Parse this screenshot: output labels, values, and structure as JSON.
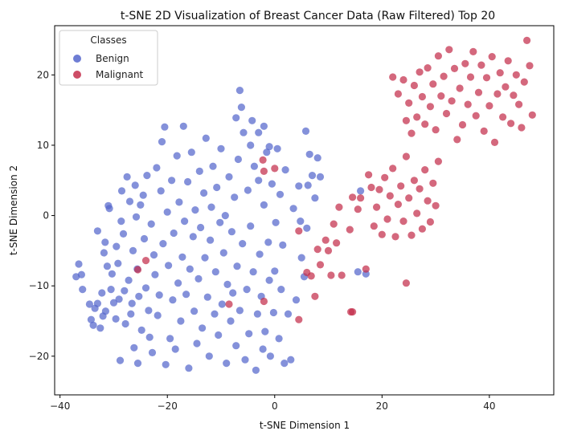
{
  "chart_data": {
    "type": "scatter",
    "title": "t-SNE 2D Visualization of Breast Cancer Data (Raw Filtered) Top 20",
    "xlabel": "t-SNE Dimension 1",
    "ylabel": "t-SNE Dimension 2",
    "xlim": [
      -41,
      52
    ],
    "ylim": [
      -25.5,
      27
    ],
    "xticks": [
      -40,
      -20,
      0,
      20,
      40
    ],
    "yticks": [
      -20,
      -10,
      0,
      10,
      20
    ],
    "grid": false,
    "legend": {
      "title": "Classes",
      "placement": "top-left"
    },
    "series": [
      {
        "name": "Benign",
        "color": "#5566cc",
        "points": [
          [
            -37,
            -8.7
          ],
          [
            -36.5,
            -6.9
          ],
          [
            -36,
            -8.4
          ],
          [
            -35.8,
            -10.5
          ],
          [
            -34.5,
            -12.6
          ],
          [
            -34.2,
            -14.8
          ],
          [
            -33.8,
            -15.6
          ],
          [
            -33.5,
            -13.2
          ],
          [
            -33,
            -2.2
          ],
          [
            -33,
            -12.5
          ],
          [
            -32.5,
            -16.0
          ],
          [
            -32.2,
            -11.0
          ],
          [
            -32.0,
            -14.3
          ],
          [
            -31.8,
            -5.3
          ],
          [
            -31.6,
            -3.8
          ],
          [
            -31.5,
            -13.6
          ],
          [
            -31.2,
            -7.2
          ],
          [
            -31,
            1.4
          ],
          [
            -30.8,
            1.0
          ],
          [
            -30.5,
            -10.5
          ],
          [
            -30.3,
            -8.3
          ],
          [
            -30.0,
            -12.4
          ],
          [
            -29.6,
            -14.7
          ],
          [
            -29.5,
            -4.4
          ],
          [
            -29.2,
            -6.8
          ],
          [
            -29,
            -11.9
          ],
          [
            -28.8,
            -20.6
          ],
          [
            -28.6,
            -0.8
          ],
          [
            -28.5,
            3.5
          ],
          [
            -28.2,
            -2.6
          ],
          [
            -28,
            -10.7
          ],
          [
            -27.8,
            -15.4
          ],
          [
            -27.5,
            5.5
          ],
          [
            -27.2,
            -9.2
          ],
          [
            -27.0,
            2.0
          ],
          [
            -26.8,
            -14.0
          ],
          [
            -26.6,
            -12.5
          ],
          [
            -26.4,
            -5.0
          ],
          [
            -26.2,
            -18.8
          ],
          [
            -26.0,
            4.3
          ],
          [
            -25.8,
            -0.2
          ],
          [
            -25.6,
            -7.6
          ],
          [
            -25.5,
            -21.0
          ],
          [
            -25.3,
            -11.5
          ],
          [
            -25.0,
            1.5
          ],
          [
            -24.8,
            -16.3
          ],
          [
            -24.5,
            2.9
          ],
          [
            -24.3,
            -3.3
          ],
          [
            -24.0,
            -10.3
          ],
          [
            -23.8,
            5.7
          ],
          [
            -23.5,
            -13.5
          ],
          [
            -23.3,
            -17.3
          ],
          [
            -23.0,
            -1.2
          ],
          [
            -22.8,
            -19.5
          ],
          [
            -22.5,
            -5.6
          ],
          [
            -22.3,
            -8.4
          ],
          [
            -22.0,
            6.8
          ],
          [
            -21.8,
            -14.2
          ],
          [
            -21.5,
            -11.3
          ],
          [
            -21.2,
            3.5
          ],
          [
            -21.0,
            10.5
          ],
          [
            -20.8,
            -4.0
          ],
          [
            -20.5,
            12.6
          ],
          [
            -20.3,
            -21.2
          ],
          [
            -20.0,
            0.5
          ],
          [
            -19.8,
            -7.1
          ],
          [
            -19.5,
            -17.5
          ],
          [
            -19.2,
            5.0
          ],
          [
            -19.0,
            -12.0
          ],
          [
            -18.8,
            -2.5
          ],
          [
            -18.5,
            -19.0
          ],
          [
            -18.2,
            8.5
          ],
          [
            -18.0,
            -9.6
          ],
          [
            -17.8,
            1.9
          ],
          [
            -17.5,
            -15.0
          ],
          [
            -17.2,
            -5.9
          ],
          [
            -17.0,
            12.7
          ],
          [
            -16.8,
            -0.8
          ],
          [
            -16.5,
            -11.2
          ],
          [
            -16.2,
            4.8
          ],
          [
            -16.0,
            -21.7
          ],
          [
            -15.8,
            -7.6
          ],
          [
            -15.5,
            9.0
          ],
          [
            -15.2,
            -3.0
          ],
          [
            -15.0,
            -13.6
          ],
          [
            -14.8,
            0.8
          ],
          [
            -14.5,
            -18.2
          ],
          [
            -14.2,
            -9.0
          ],
          [
            -14.0,
            6.3
          ],
          [
            -13.8,
            -1.7
          ],
          [
            -13.5,
            -16.0
          ],
          [
            -13.2,
            3.2
          ],
          [
            -13.0,
            -6.0
          ],
          [
            -12.8,
            11.0
          ],
          [
            -12.5,
            -11.6
          ],
          [
            -12.2,
            -20.0
          ],
          [
            -12.0,
            -3.5
          ],
          [
            -11.8,
            1.2
          ],
          [
            -11.5,
            7.0
          ],
          [
            -11.2,
            -14.0
          ],
          [
            -11.0,
            -8.0
          ],
          [
            -10.8,
            4.0
          ],
          [
            -10.5,
            -17.0
          ],
          [
            -10.2,
            -1.0
          ],
          [
            -10.0,
            9.5
          ],
          [
            -9.8,
            -12.6
          ],
          [
            -9.5,
            -5.3
          ],
          [
            -9.2,
            0.0
          ],
          [
            -9.0,
            -21.0
          ],
          [
            -8.8,
            -9.8
          ],
          [
            -8.5,
            5.5
          ],
          [
            -8.2,
            -15.0
          ],
          [
            -8.0,
            -2.3
          ],
          [
            -7.8,
            -11.0
          ],
          [
            -7.5,
            2.6
          ],
          [
            -7.2,
            -18.5
          ],
          [
            -7.0,
            -7.2
          ],
          [
            -6.8,
            8.0
          ],
          [
            -6.5,
            -13.5
          ],
          [
            -6.2,
            15.4
          ],
          [
            -6.0,
            -4.0
          ],
          [
            -5.8,
            11.8
          ],
          [
            -5.5,
            -20.5
          ],
          [
            -5.2,
            -10.5
          ],
          [
            -5.0,
            3.6
          ],
          [
            -4.8,
            -16.8
          ],
          [
            -4.5,
            -1.5
          ],
          [
            -4.2,
            13.5
          ],
          [
            -4.0,
            -8.0
          ],
          [
            -3.8,
            7.0
          ],
          [
            -3.5,
            -22.0
          ],
          [
            -3.2,
            -14.0
          ],
          [
            -3.0,
            5.0
          ],
          [
            -2.8,
            -5.5
          ],
          [
            -2.5,
            -11.5
          ],
          [
            -2.2,
            -19.0
          ],
          [
            -2.0,
            1.5
          ],
          [
            -1.8,
            -16.5
          ],
          [
            -1.5,
            9.0
          ],
          [
            -1.2,
            -3.8
          ],
          [
            -1.0,
            -9.2
          ],
          [
            -0.8,
            -20.0
          ],
          [
            -0.5,
            4.5
          ],
          [
            -0.2,
            -13.8
          ],
          [
            0,
            -7.9
          ],
          [
            0.2,
            -1.0
          ],
          [
            0.5,
            9.5
          ],
          [
            0.8,
            -17.5
          ],
          [
            1.0,
            3.0
          ],
          [
            1.2,
            -10.5
          ],
          [
            1.5,
            -4.2
          ],
          [
            1.8,
            -21.0
          ],
          [
            2.0,
            6.5
          ],
          [
            2.5,
            -14.0
          ],
          [
            3.0,
            -20.5
          ],
          [
            3.5,
            1.0
          ],
          [
            4.0,
            -12.0
          ],
          [
            4.5,
            4.2
          ],
          [
            5.0,
            -6.0
          ],
          [
            5.5,
            -8.7
          ],
          [
            5.8,
            12.0
          ],
          [
            6.2,
            4.3
          ],
          [
            6.5,
            8.7
          ],
          [
            7.0,
            5.7
          ],
          [
            7.5,
            2.5
          ],
          [
            8.0,
            8.2
          ],
          [
            8.5,
            5.5
          ],
          [
            4.8,
            -0.8
          ],
          [
            6.0,
            -1.8
          ],
          [
            15.5,
            -8.0
          ],
          [
            16.0,
            3.5
          ],
          [
            17.0,
            -8.3
          ],
          [
            -2,
            12.7
          ],
          [
            -3,
            11.8
          ],
          [
            -6.5,
            17.8
          ],
          [
            -7.2,
            13.9
          ],
          [
            -4.5,
            10.0
          ],
          [
            -1,
            9.8
          ]
        ]
      },
      {
        "name": "Malignant",
        "color": "#c42e4b",
        "points": [
          [
            -24,
            -6.4
          ],
          [
            -25.5,
            -7.7
          ],
          [
            -8.5,
            -12.6
          ],
          [
            -2,
            -12.2
          ],
          [
            -2,
            6.3
          ],
          [
            0,
            6.7
          ],
          [
            -2.2,
            7.9
          ],
          [
            4.5,
            -2.2
          ],
          [
            4.5,
            -14.8
          ],
          [
            6,
            -8.1
          ],
          [
            6.8,
            -8.6
          ],
          [
            7.5,
            -11.5
          ],
          [
            8,
            -4.8
          ],
          [
            8.5,
            -7.0
          ],
          [
            9.5,
            -3.5
          ],
          [
            10,
            -5.0
          ],
          [
            10.5,
            -8.5
          ],
          [
            11,
            -1.2
          ],
          [
            11.5,
            -3.9
          ],
          [
            12,
            1.2
          ],
          [
            12.5,
            -8.5
          ],
          [
            14,
            -2.0
          ],
          [
            14.5,
            -13.7
          ],
          [
            14.5,
            2.6
          ],
          [
            15.5,
            0.9
          ],
          [
            16,
            2.5
          ],
          [
            17,
            -7.6
          ],
          [
            17.5,
            5.8
          ],
          [
            18,
            4.0
          ],
          [
            18.5,
            -1.5
          ],
          [
            19,
            1.2
          ],
          [
            19.5,
            3.7
          ],
          [
            20,
            -2.7
          ],
          [
            20.5,
            5.4
          ],
          [
            21,
            -0.5
          ],
          [
            21.5,
            2.8
          ],
          [
            22,
            6.7
          ],
          [
            22.5,
            -3.0
          ],
          [
            23,
            1.6
          ],
          [
            23.5,
            4.2
          ],
          [
            24,
            -0.8
          ],
          [
            24.5,
            8.4
          ],
          [
            25,
            2.5
          ],
          [
            25.5,
            -2.8
          ],
          [
            26,
            5.0
          ],
          [
            26.5,
            0.3
          ],
          [
            27,
            3.8
          ],
          [
            27.5,
            -1.9
          ],
          [
            28,
            6.5
          ],
          [
            28.5,
            2.1
          ],
          [
            29,
            -0.9
          ],
          [
            29.5,
            4.6
          ],
          [
            30,
            1.4
          ],
          [
            30.5,
            7.7
          ],
          [
            22,
            19.7
          ],
          [
            23,
            17.3
          ],
          [
            24,
            19.3
          ],
          [
            24.5,
            13.5
          ],
          [
            25,
            16.0
          ],
          [
            25.5,
            11.7
          ],
          [
            26,
            18.5
          ],
          [
            26.5,
            14.0
          ],
          [
            27,
            20.4
          ],
          [
            27.5,
            16.9
          ],
          [
            28,
            13.0
          ],
          [
            28.5,
            21.0
          ],
          [
            29,
            15.5
          ],
          [
            29.5,
            18.7
          ],
          [
            30,
            12.2
          ],
          [
            30.5,
            22.7
          ],
          [
            31,
            17.0
          ],
          [
            31.5,
            19.8
          ],
          [
            32,
            14.5
          ],
          [
            32.5,
            23.6
          ],
          [
            33,
            16.3
          ],
          [
            33.5,
            20.9
          ],
          [
            34,
            10.8
          ],
          [
            34.5,
            18.1
          ],
          [
            35,
            12.9
          ],
          [
            35.5,
            21.6
          ],
          [
            36,
            15.8
          ],
          [
            36.5,
            19.7
          ],
          [
            37,
            23.3
          ],
          [
            37.5,
            14.2
          ],
          [
            38,
            17.5
          ],
          [
            38.5,
            21.4
          ],
          [
            39,
            12.0
          ],
          [
            39.5,
            19.6
          ],
          [
            40,
            15.6
          ],
          [
            40.5,
            22.6
          ],
          [
            41,
            10.4
          ],
          [
            41.5,
            17.3
          ],
          [
            42,
            20.3
          ],
          [
            42.5,
            14.0
          ],
          [
            43,
            18.3
          ],
          [
            43.5,
            22.0
          ],
          [
            44,
            13.1
          ],
          [
            44.5,
            17.1
          ],
          [
            45,
            20.0
          ],
          [
            45.5,
            15.8
          ],
          [
            46,
            12.5
          ],
          [
            46.5,
            19.0
          ],
          [
            47,
            24.9
          ],
          [
            47.5,
            21.3
          ],
          [
            48,
            14.3
          ],
          [
            14.2,
            -13.7
          ],
          [
            24.5,
            -9.6
          ]
        ]
      }
    ]
  }
}
